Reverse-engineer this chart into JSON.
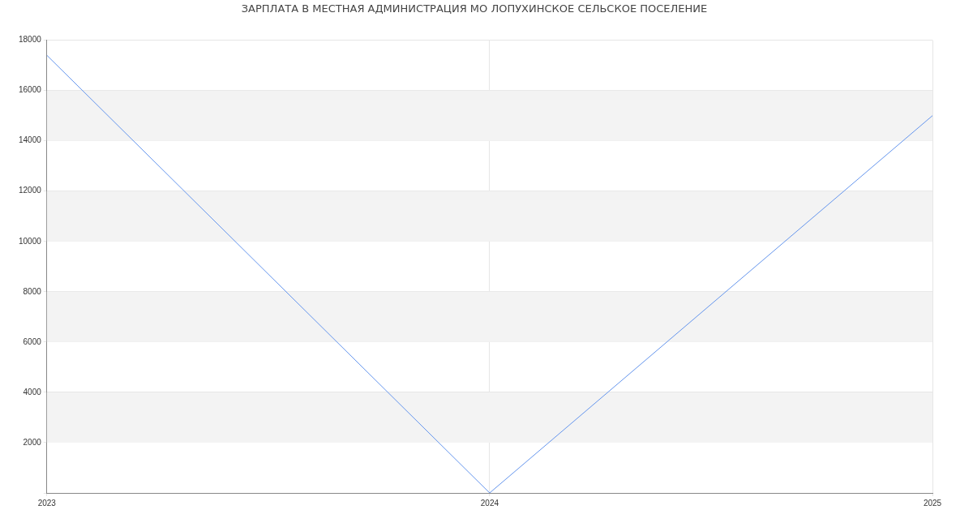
{
  "chart_data": {
    "type": "line",
    "title": "ЗАРПЛАТА В МЕСТНАЯ АДМИНИСТРАЦИЯ МО ЛОПУХИНСКОЕ СЕЛЬСКОЕ ПОСЕЛЕНИЕ",
    "x": [
      2023,
      2024,
      2025
    ],
    "series": [
      {
        "color": "#6495ed",
        "values": [
          17400,
          0,
          15000
        ]
      }
    ],
    "xlim": [
      2023,
      2025
    ],
    "xticks": [
      2023,
      2024,
      2025
    ],
    "ylim": [
      0,
      18000
    ],
    "yticks": [
      {
        "value": 0,
        "label": null
      },
      2000,
      4000,
      6000,
      8000,
      10000,
      12000,
      14000,
      16000,
      18000
    ],
    "bands": [
      {
        "axis": "y",
        "from": 2000,
        "to": 4000,
        "color": "#f3f3f3"
      },
      {
        "axis": "y",
        "from": 6000,
        "to": 8000,
        "color": "#f3f3f3"
      },
      {
        "axis": "y",
        "from": 10000,
        "to": 12000,
        "color": "#f3f3f3"
      },
      {
        "axis": "y",
        "from": 14000,
        "to": 16000,
        "color": "#f3f3f3"
      }
    ],
    "grid": true,
    "legend": false,
    "marker": "none",
    "line_style": "solid"
  }
}
